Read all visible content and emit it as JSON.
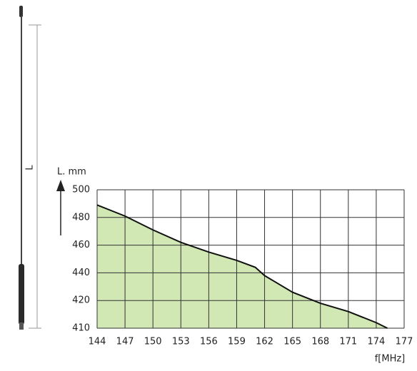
{
  "chart_data": {
    "type": "area",
    "y_label": "L. mm",
    "x_label": "f[MHz]",
    "dimension_label": "L",
    "x": [
      144,
      147,
      150,
      153,
      156,
      159,
      161,
      162,
      165,
      168,
      171,
      174,
      175.2
    ],
    "values": [
      489,
      481,
      471,
      462,
      455,
      449,
      444,
      438,
      426,
      419,
      416,
      412,
      410
    ],
    "color": "#d2e8b4",
    "line_color": "#111111",
    "xlim": [
      144,
      177
    ],
    "xticks": [
      144,
      147,
      150,
      153,
      156,
      159,
      162,
      165,
      168,
      171,
      174,
      177
    ],
    "ylim": [
      410,
      500
    ],
    "yticks": [
      410,
      420,
      440,
      460,
      480,
      500
    ],
    "grid": true
  }
}
